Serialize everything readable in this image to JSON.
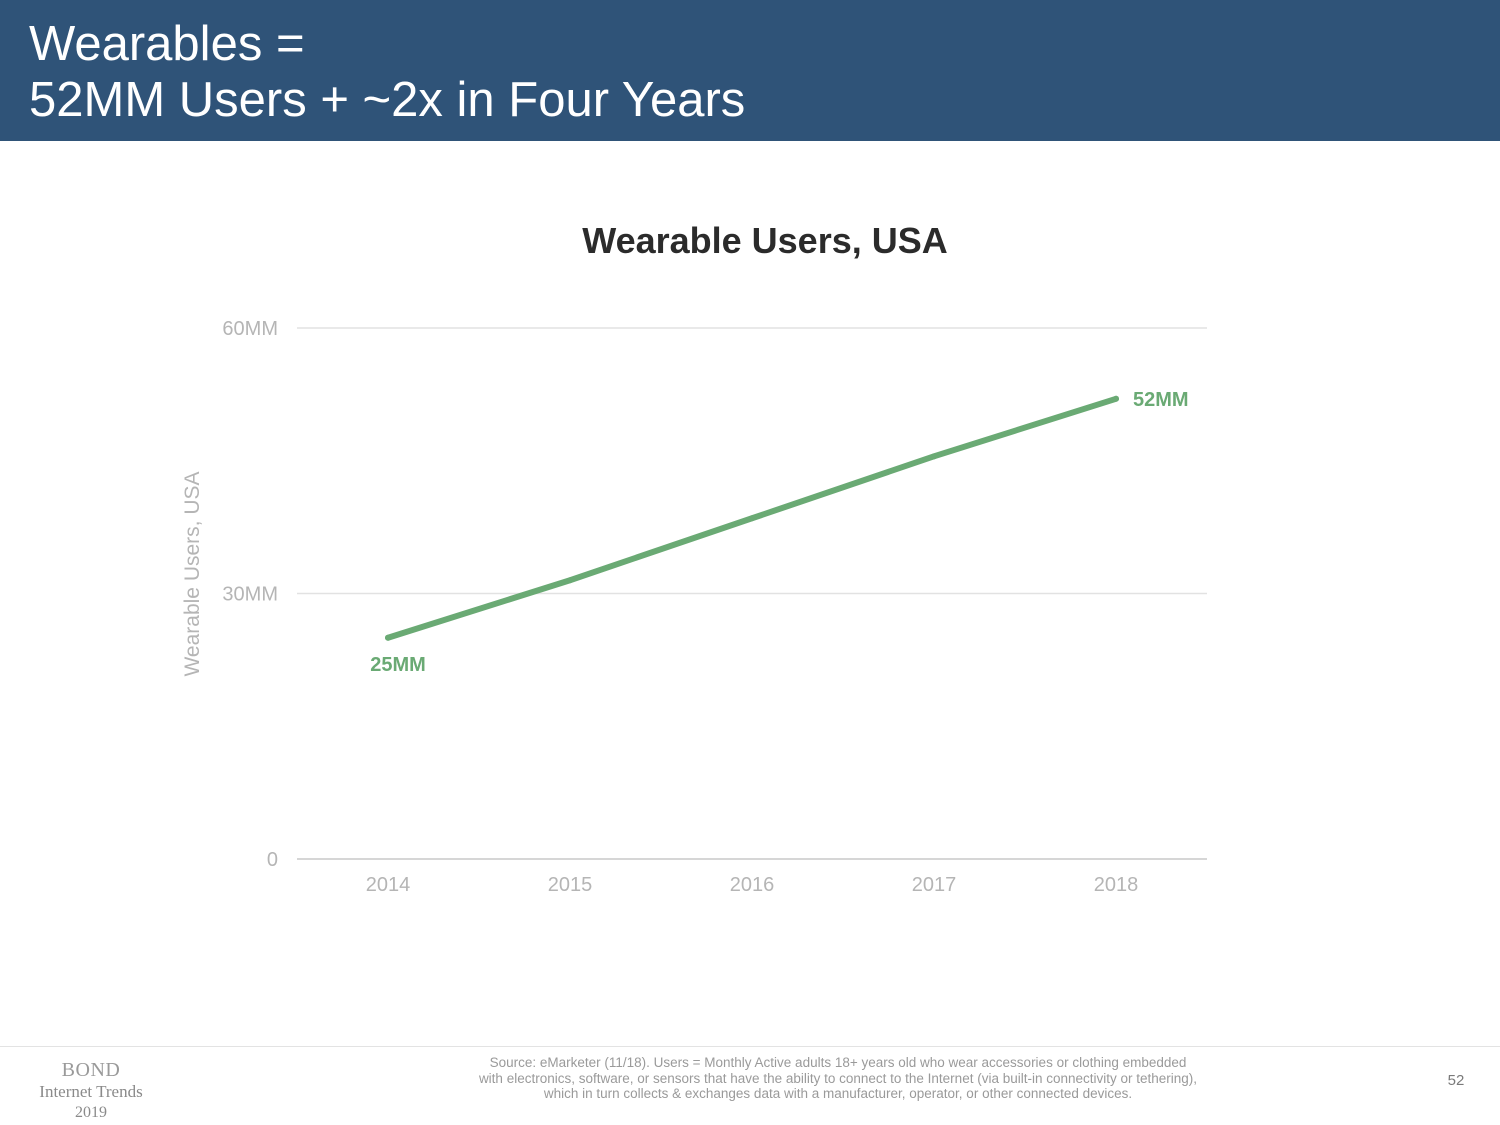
{
  "slide": {
    "title_line1": "Wearables =",
    "title_line2": "52MM Users + ~2x in Four Years",
    "header_color": "#2f5378",
    "page_number": "52"
  },
  "footer": {
    "logo_brand": "BOND",
    "logo_sub": "Internet Trends",
    "logo_year": "2019",
    "source_lines": [
      "Source: eMarketer (11/18). Users = Monthly Active adults 18+ years old who wear accessories or clothing embedded",
      "with electronics, software, or sensors that have the ability to connect to the Internet (via built-in connectivity or tethering),",
      "which in turn collects & exchanges data with a manufacturer, operator, or other connected devices."
    ]
  },
  "chart_data": {
    "type": "line",
    "title": "Wearable Users, USA",
    "ylabel": "Wearable Users, USA",
    "xlabel": "",
    "x": [
      "2014",
      "2015",
      "2016",
      "2017",
      "2018"
    ],
    "series": [
      {
        "values": [
          25,
          31.5,
          38.5,
          45.5,
          52
        ],
        "color": "#6aaa74"
      }
    ],
    "ylim": [
      0,
      60
    ],
    "yticks": [
      {
        "value": 0,
        "label": "0"
      },
      {
        "value": 30,
        "label": "30MM"
      },
      {
        "value": 60,
        "label": "60MM"
      }
    ],
    "data_labels": [
      {
        "index": 0,
        "text": "25MM",
        "position": "below"
      },
      {
        "index": 4,
        "text": "52MM",
        "position": "right"
      }
    ],
    "grid": true,
    "legend": "none"
  }
}
